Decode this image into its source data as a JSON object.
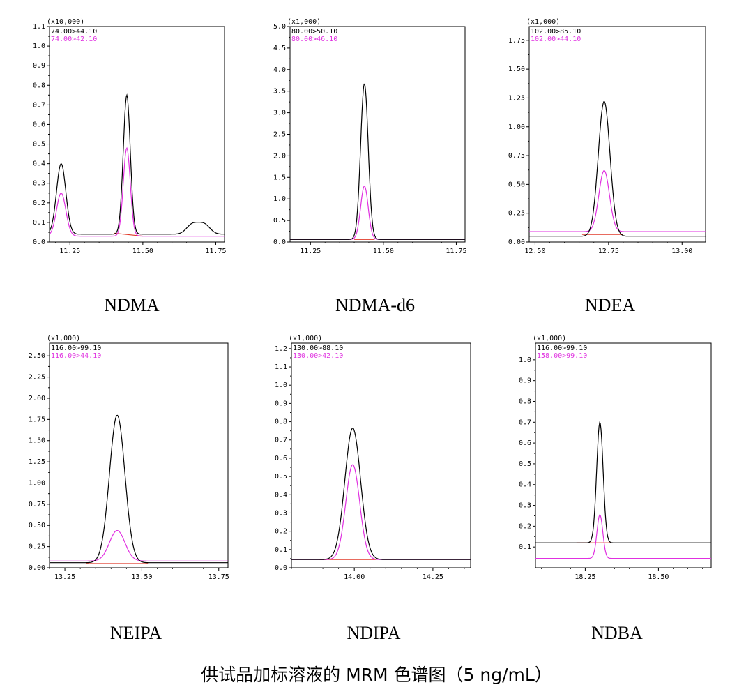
{
  "caption": "供试品加标溶液的 MRM 色谱图（5 ng/mL）",
  "colors": {
    "quant": "#000000",
    "qual": "#e030e0",
    "baseline": "#e03a2a"
  },
  "chart_data": [
    {
      "type": "line",
      "title": "NDMA",
      "scale_label": "(x10,000)",
      "xlim": [
        11.18,
        11.78
      ],
      "ylim": [
        0.0,
        1.1
      ],
      "xticks": [
        11.25,
        11.5,
        11.75
      ],
      "xtick_labels": [
        "11.25",
        "11.50",
        "11.75"
      ],
      "yticks": [
        0,
        0.1,
        0.2,
        0.3,
        0.4,
        0.5,
        0.6,
        0.7,
        0.8,
        0.9,
        1.0,
        1.1
      ],
      "ytick_labels": [
        "0.0",
        "0.1",
        "0.2",
        "0.3",
        "0.4",
        "0.5",
        "0.6",
        "0.7",
        "0.8",
        "0.9",
        "1.0",
        "1.1"
      ],
      "series": [
        {
          "name": "74.00>44.10",
          "role": "quant",
          "baseline_level": 0.04,
          "peaks": [
            {
              "center": 11.22,
              "height": 0.36,
              "width": 0.016
            },
            {
              "center": 11.445,
              "height": 0.71,
              "width": 0.012
            },
            {
              "center": 11.67,
              "height": 0.05,
              "width": 0.02
            },
            {
              "center": 11.71,
              "height": 0.05,
              "width": 0.02
            }
          ]
        },
        {
          "name": "74.00>42.10",
          "role": "qual",
          "baseline_level": 0.03,
          "peaks": [
            {
              "center": 11.22,
              "height": 0.22,
              "width": 0.016
            },
            {
              "center": 11.445,
              "height": 0.45,
              "width": 0.012
            }
          ]
        }
      ],
      "integration_baseline": {
        "x": [
          11.4,
          11.5
        ],
        "y": [
          0.045,
          0.03
        ]
      }
    },
    {
      "type": "line",
      "title": "NDMA-d6",
      "scale_label": "(x1,000)",
      "xlim": [
        11.18,
        11.78
      ],
      "ylim": [
        0.0,
        5.0
      ],
      "xticks": [
        11.25,
        11.5,
        11.75
      ],
      "xtick_labels": [
        "11.25",
        "11.50",
        "11.75"
      ],
      "yticks": [
        0,
        0.5,
        1.0,
        1.5,
        2.0,
        2.5,
        3.0,
        3.5,
        4.0,
        4.5,
        5.0
      ],
      "ytick_labels": [
        "0.0",
        "0.5",
        "1.0",
        "1.5",
        "2.0",
        "2.5",
        "3.0",
        "3.5",
        "4.0",
        "4.5",
        "5.0"
      ],
      "series": [
        {
          "name": "80.00>50.10",
          "role": "quant",
          "baseline_level": 0.06,
          "peaks": [
            {
              "center": 11.435,
              "height": 3.62,
              "width": 0.013
            }
          ]
        },
        {
          "name": "80.00>46.10",
          "role": "qual",
          "baseline_level": 0.06,
          "peaks": [
            {
              "center": 11.435,
              "height": 1.24,
              "width": 0.013
            }
          ]
        }
      ],
      "integration_baseline": {
        "x": [
          11.4,
          11.47
        ],
        "y": [
          0.06,
          0.06
        ]
      }
    },
    {
      "type": "line",
      "title": "NDEA",
      "scale_label": "(x1,000)",
      "xlim": [
        12.48,
        13.08
      ],
      "ylim": [
        0.0,
        1.87
      ],
      "xticks": [
        12.5,
        12.75,
        13.0
      ],
      "xtick_labels": [
        "12.50",
        "12.75",
        "13.00"
      ],
      "yticks": [
        0,
        0.25,
        0.5,
        0.75,
        1.0,
        1.25,
        1.5,
        1.75
      ],
      "ytick_labels": [
        "0.00",
        "0.25",
        "0.50",
        "0.75",
        "1.00",
        "1.25",
        "1.50",
        "1.75"
      ],
      "series": [
        {
          "name": "102.00>85.10",
          "role": "quant",
          "baseline_level": 0.05,
          "peaks": [
            {
              "center": 12.735,
              "height": 1.17,
              "width": 0.02
            }
          ]
        },
        {
          "name": "102.00>44.10",
          "role": "qual",
          "baseline_level": 0.09,
          "peaks": [
            {
              "center": 12.735,
              "height": 0.53,
              "width": 0.018
            }
          ]
        }
      ],
      "integration_baseline": {
        "x": [
          12.66,
          12.8
        ],
        "y": [
          0.065,
          0.065
        ]
      }
    },
    {
      "type": "line",
      "title": "NEIPA",
      "scale_label": "(x1,000)",
      "xlim": [
        13.2,
        13.78
      ],
      "ylim": [
        0.0,
        2.65
      ],
      "xticks": [
        13.25,
        13.5,
        13.75
      ],
      "xtick_labels": [
        "13.25",
        "13.50",
        "13.75"
      ],
      "yticks": [
        0,
        0.25,
        0.5,
        0.75,
        1.0,
        1.25,
        1.5,
        1.75,
        2.0,
        2.25,
        2.5
      ],
      "ytick_labels": [
        "0.00",
        "0.25",
        "0.50",
        "0.75",
        "1.00",
        "1.25",
        "1.50",
        "1.75",
        "2.00",
        "2.25",
        "2.50"
      ],
      "series": [
        {
          "name": "116.00>99.10",
          "role": "quant",
          "baseline_level": 0.06,
          "peaks": [
            {
              "center": 13.42,
              "height": 1.74,
              "width": 0.025
            }
          ]
        },
        {
          "name": "116.00>44.10",
          "role": "qual",
          "baseline_level": 0.08,
          "peaks": [
            {
              "center": 13.42,
              "height": 0.36,
              "width": 0.025
            }
          ]
        }
      ],
      "integration_baseline": {
        "x": [
          13.32,
          13.52
        ],
        "y": [
          0.05,
          0.05
        ]
      }
    },
    {
      "type": "line",
      "title": "NDIPA",
      "scale_label": "(x1,000)",
      "xlim": [
        13.8,
        14.37
      ],
      "ylim": [
        0.0,
        1.23
      ],
      "xticks": [
        14.0,
        14.25
      ],
      "xtick_labels": [
        "14.00",
        "14.25"
      ],
      "yticks": [
        0,
        0.1,
        0.2,
        0.3,
        0.4,
        0.5,
        0.6,
        0.7,
        0.8,
        0.9,
        1.0,
        1.1,
        1.2
      ],
      "ytick_labels": [
        "0.0",
        "0.1",
        "0.2",
        "0.3",
        "0.4",
        "0.5",
        "0.6",
        "0.7",
        "0.8",
        "0.9",
        "1.0",
        "1.1",
        "1.2"
      ],
      "series": [
        {
          "name": "130.00>88.10",
          "role": "quant",
          "baseline_level": 0.045,
          "peaks": [
            {
              "center": 13.995,
              "height": 0.72,
              "width": 0.025
            }
          ]
        },
        {
          "name": "130.00>42.10",
          "role": "qual",
          "baseline_level": 0.045,
          "peaks": [
            {
              "center": 13.995,
              "height": 0.52,
              "width": 0.022
            }
          ]
        }
      ],
      "integration_baseline": {
        "x": [
          13.89,
          14.07
        ],
        "y": [
          0.045,
          0.045
        ]
      }
    },
    {
      "type": "line",
      "title": "NDBA",
      "scale_label": "(x1,000)",
      "xlim": [
        18.08,
        18.68
      ],
      "ylim": [
        0.0,
        1.08
      ],
      "xticks": [
        18.25,
        18.5
      ],
      "xtick_labels": [
        "18.25",
        "18.50"
      ],
      "yticks": [
        0.1,
        0.2,
        0.3,
        0.4,
        0.5,
        0.6,
        0.7,
        0.8,
        0.9,
        1.0
      ],
      "ytick_labels": [
        "0.1",
        "0.2",
        "0.3",
        "0.4",
        "0.5",
        "0.6",
        "0.7",
        "0.8",
        "0.9",
        "1.0"
      ],
      "series": [
        {
          "name": "116.00>99.10",
          "role": "quant",
          "baseline_level": 0.12,
          "peaks": [
            {
              "center": 18.3,
              "height": 0.58,
              "width": 0.011
            }
          ]
        },
        {
          "name": "158.00>99.10",
          "role": "qual",
          "baseline_level": 0.045,
          "peaks": [
            {
              "center": 18.3,
              "height": 0.21,
              "width": 0.01
            }
          ]
        }
      ],
      "integration_baseline": {
        "x": [
          18.22,
          18.34
        ],
        "y": [
          0.12,
          0.12
        ]
      }
    }
  ]
}
